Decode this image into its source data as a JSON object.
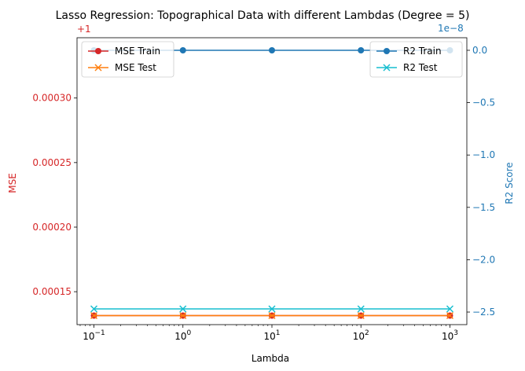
{
  "chart_data": {
    "type": "line",
    "title": "Lasso Regression: Topographical Data with different Lambdas (Degree = 5)",
    "xlabel": "Lambda",
    "x": [
      0.1,
      1,
      10,
      100,
      1000
    ],
    "x_tick_labels": [
      {
        "base": "10",
        "exp": "−1"
      },
      {
        "base": "10",
        "exp": "0"
      },
      {
        "base": "10",
        "exp": "1"
      },
      {
        "base": "10",
        "exp": "2"
      },
      {
        "base": "10",
        "exp": "3"
      }
    ],
    "xscale": "log",
    "left_axis": {
      "label": "MSE",
      "offset_text": "+1",
      "color": "#d62728",
      "ticks": [
        0.00015,
        0.0002,
        0.00025,
        0.0003
      ],
      "tick_labels": [
        "0.00015",
        "0.00020",
        "0.00025",
        "0.00030"
      ],
      "ylim": [
        0.0001245,
        0.0003467
      ]
    },
    "right_axis": {
      "label": "R2 Score",
      "offset_text": "1e−8",
      "color": "#1f77b4",
      "ticks": [
        -2.5,
        -2.0,
        -1.5,
        -1.0,
        -0.5,
        0.0
      ],
      "tick_labels": [
        "−2.5",
        "−2.0",
        "−1.5",
        "−1.0",
        "−0.5",
        "0.0"
      ],
      "ylim": [
        -2.62,
        0.12
      ]
    },
    "series": [
      {
        "name": "MSE Train",
        "axis": "left",
        "color": "#d62728",
        "marker": "circle",
        "values": [
          0.0001315,
          0.0001315,
          0.0001315,
          0.0001315,
          0.0001315
        ]
      },
      {
        "name": "MSE Test",
        "axis": "left",
        "color": "#ff7f0e",
        "marker": "x",
        "values": [
          0.0001315,
          0.0001315,
          0.0001315,
          0.0001315,
          0.0001315
        ]
      },
      {
        "name": "R2 Train",
        "axis": "right",
        "color": "#1f77b4",
        "marker": "circle",
        "values": [
          0.0,
          0.0,
          0.0,
          0.0,
          0.0
        ]
      },
      {
        "name": "R2 Test",
        "axis": "right",
        "color": "#17becf",
        "marker": "x",
        "values": [
          -2.47,
          -2.47,
          -2.47,
          -2.47,
          -2.47
        ]
      }
    ],
    "legends": [
      {
        "position": "top-left",
        "entries": [
          "MSE Train",
          "MSE Test"
        ]
      },
      {
        "position": "top-right",
        "entries": [
          "R2 Train",
          "R2 Test"
        ]
      }
    ],
    "grid": false
  }
}
